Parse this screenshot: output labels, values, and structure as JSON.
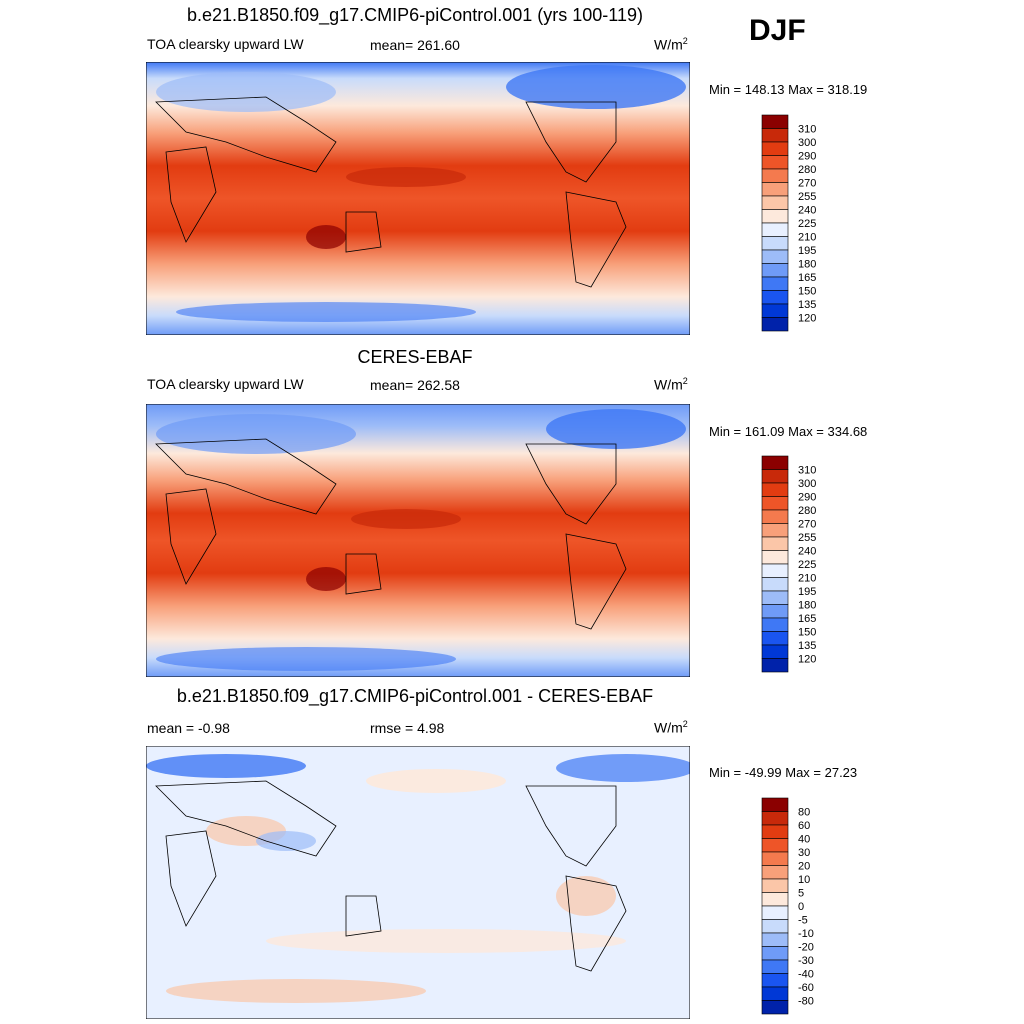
{
  "season": "DJF",
  "colors": {
    "abs_palette": [
      "#00007f",
      "#0022aa",
      "#0038d6",
      "#1a55f0",
      "#3f78f5",
      "#6f9bf7",
      "#9dbcf8",
      "#c8dbfb",
      "#e8f0ff",
      "#fde9dc",
      "#fbc6a8",
      "#f8a07a",
      "#f47a4e",
      "#ee5528",
      "#e23c11",
      "#c8290a",
      "#8b0000"
    ],
    "diff_palette": [
      "#00007f",
      "#0022aa",
      "#0038d6",
      "#1a55f0",
      "#3f78f5",
      "#6f9bf7",
      "#9dbcf8",
      "#c8dbfb",
      "#e8f0ff",
      "#fde9dc",
      "#fbc6a8",
      "#f8a07a",
      "#f47a4e",
      "#ee5528",
      "#e23c11",
      "#c8290a",
      "#8b0000"
    ],
    "coast": "#000000"
  },
  "panels": [
    {
      "title": "b.e21.B1850.f09_g17.CMIP6-piControl.001 (yrs 100-119)",
      "left_label": "TOA clearsky upward LW",
      "mid_label": "mean= 261.60",
      "units_base": "W/m",
      "units_sup": "2",
      "minmax": "Min = 148.13 Max = 318.19"
    },
    {
      "title": "CERES-EBAF",
      "left_label": "TOA clearsky upward LW",
      "mid_label": "mean= 262.58",
      "units_base": "W/m",
      "units_sup": "2",
      "minmax": "Min = 161.09 Max = 334.68"
    },
    {
      "title": "b.e21.B1850.f09_g17.CMIP6-piControl.001 - CERES-EBAF",
      "left_label": "mean =  -0.98",
      "mid_label": "rmse =   4.98",
      "units_base": "W/m",
      "units_sup": "2",
      "minmax": "Min = -49.99 Max =  27.23"
    }
  ],
  "chart_data": [
    {
      "type": "heatmap",
      "title": "b.e21.B1850.f09_g17.CMIP6-piControl.001 (yrs 100-119)",
      "variable": "TOA clearsky upward LW",
      "mean": 261.6,
      "min": 148.13,
      "max": 318.19,
      "units": "W/m2",
      "colorbar_levels": [
        310,
        300,
        290,
        280,
        270,
        255,
        240,
        225,
        210,
        195,
        180,
        165,
        150,
        135,
        120
      ],
      "colorbar_labels": [
        "310",
        "300",
        "290",
        "280",
        "270",
        "255",
        "240",
        "225",
        "210",
        "195",
        "180",
        "165",
        "150",
        "135",
        "120"
      ]
    },
    {
      "type": "heatmap",
      "title": "CERES-EBAF",
      "variable": "TOA clearsky upward LW",
      "mean": 262.58,
      "min": 161.09,
      "max": 334.68,
      "units": "W/m2",
      "colorbar_levels": [
        310,
        300,
        290,
        280,
        270,
        255,
        240,
        225,
        210,
        195,
        180,
        165,
        150,
        135,
        120
      ],
      "colorbar_labels": [
        "310",
        "300",
        "290",
        "280",
        "270",
        "255",
        "240",
        "225",
        "210",
        "195",
        "180",
        "165",
        "150",
        "135",
        "120"
      ]
    },
    {
      "type": "heatmap",
      "title": "b.e21.B1850.f09_g17.CMIP6-piControl.001 - CERES-EBAF",
      "mean": -0.98,
      "rmse": 4.98,
      "min": -49.99,
      "max": 27.23,
      "units": "W/m2",
      "colorbar_levels": [
        80,
        60,
        40,
        30,
        20,
        10,
        5,
        0,
        -5,
        -10,
        -20,
        -30,
        -40,
        -60,
        -80
      ],
      "colorbar_labels": [
        "80",
        "60",
        "40",
        "30",
        "20",
        "10",
        "5",
        "0",
        "-5",
        "-10",
        "-20",
        "-30",
        "-40",
        "-60",
        "-80"
      ]
    }
  ]
}
